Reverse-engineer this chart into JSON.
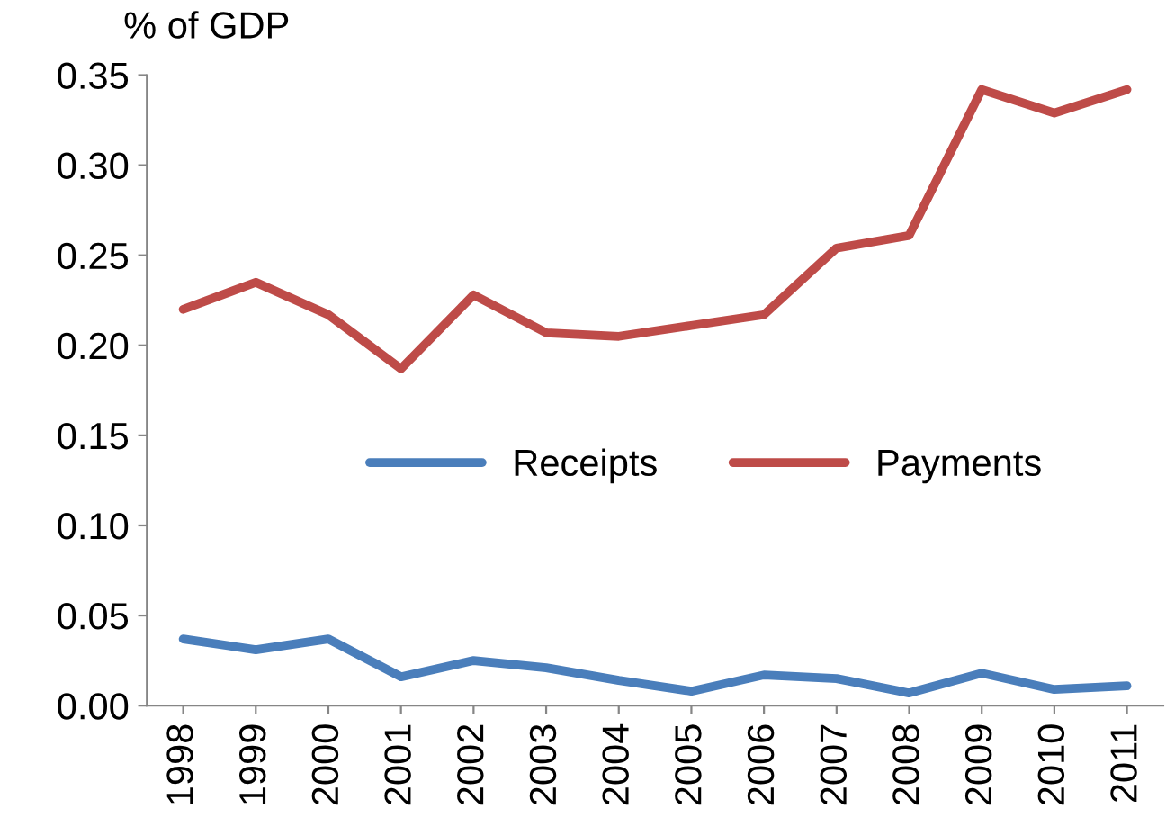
{
  "chart_data": {
    "type": "line",
    "ylabel": "% of GDP",
    "categories": [
      "1998",
      "1999",
      "2000",
      "2001",
      "2002",
      "2003",
      "2004",
      "2005",
      "2006",
      "2007",
      "2008",
      "2009",
      "2010",
      "2011"
    ],
    "series": [
      {
        "name": "Receipts",
        "color": "#4a7ebb",
        "values": [
          0.037,
          0.031,
          0.037,
          0.016,
          0.025,
          0.021,
          0.014,
          0.008,
          0.017,
          0.015,
          0.007,
          0.018,
          0.009,
          0.011
        ]
      },
      {
        "name": "Payments",
        "color": "#be4b48",
        "values": [
          0.22,
          0.235,
          0.217,
          0.187,
          0.228,
          0.207,
          0.205,
          0.211,
          0.217,
          0.254,
          0.261,
          0.342,
          0.329,
          0.342
        ]
      }
    ],
    "ylim": [
      0,
      0.35
    ],
    "yticks": [
      {
        "value": 0,
        "label": "0.00"
      },
      {
        "value": 0.05,
        "label": "0.05"
      },
      {
        "value": 0.1,
        "label": "0.10"
      },
      {
        "value": 0.15,
        "label": "0.15"
      },
      {
        "value": 0.2,
        "label": "0.20"
      },
      {
        "value": 0.25,
        "label": "0.25"
      },
      {
        "value": 0.3,
        "label": "0.30"
      },
      {
        "value": 0.35,
        "label": "0.35"
      }
    ],
    "legend": "center",
    "grid": false,
    "marker": "none",
    "line_style": "solid"
  }
}
